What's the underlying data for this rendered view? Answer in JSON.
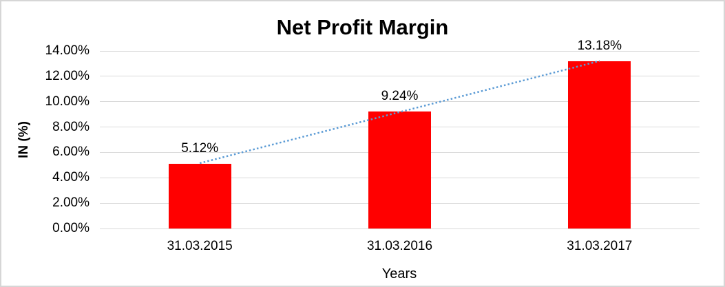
{
  "chart_data": {
    "type": "bar",
    "title": "Net Profit Margin",
    "categories": [
      "31.03.2015",
      "31.03.2016",
      "31.03.2017"
    ],
    "values": [
      5.12,
      9.24,
      13.18
    ],
    "data_labels": [
      "5.12%",
      "9.24%",
      "13.18%"
    ],
    "xlabel": "Years",
    "ylabel": "IN (%)",
    "ylim": [
      0,
      14
    ],
    "yticks": [
      {
        "label": "0.00%",
        "value": 0
      },
      {
        "label": "2.00%",
        "value": 2
      },
      {
        "label": "4.00%",
        "value": 4
      },
      {
        "label": "6.00%",
        "value": 6
      },
      {
        "label": "8.00%",
        "value": 8
      },
      {
        "label": "10.00%",
        "value": 10
      },
      {
        "label": "12.00%",
        "value": 12
      },
      {
        "label": "14.00%",
        "value": 14
      }
    ],
    "grid": true,
    "legend": "none",
    "bar_color": "#FF0000",
    "gridline_color": "#D9D9D9",
    "trendline": {
      "type": "linear",
      "style": "dotted",
      "color": "#5B9BD5"
    }
  }
}
